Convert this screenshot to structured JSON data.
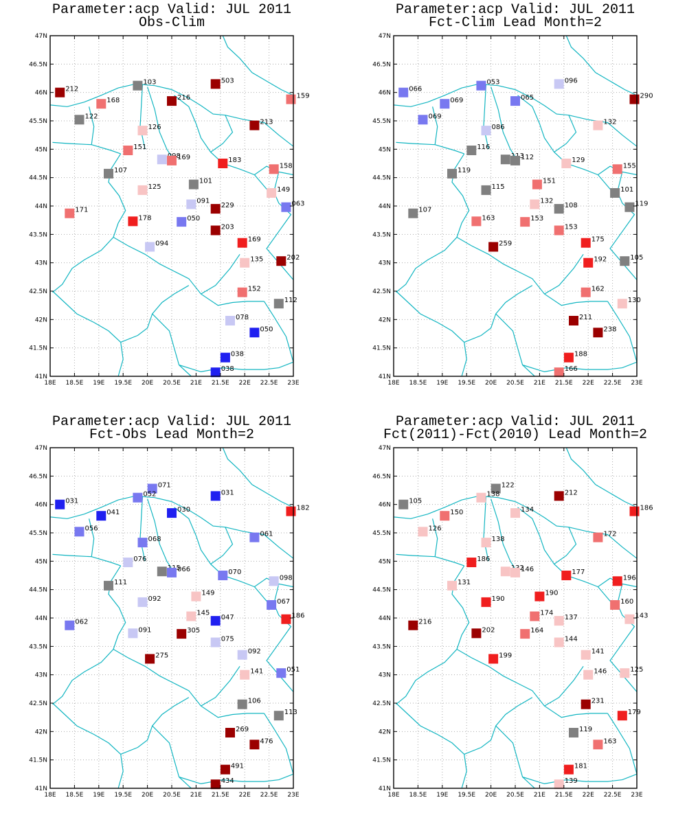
{
  "colors": {
    "coast": "#11b5c1",
    "grid": "#a9a9a9",
    "dark_red": "#9b0000",
    "red": "#f01e1e",
    "salmon": "#f07070",
    "pink": "#f8c4c4",
    "gray": "#808080",
    "lavender": "#c8c8f4",
    "light_blue": "#7878f0",
    "blue": "#2020f0"
  },
  "axes": {
    "lon_ticks": [
      "18E",
      "18.5E",
      "19E",
      "19.5E",
      "20E",
      "20.5E",
      "21E",
      "21.5E",
      "22E",
      "22.5E",
      "23E"
    ],
    "lat_ticks": [
      "41N",
      "41.5N",
      "42N",
      "42.5N",
      "43N",
      "43.5N",
      "44N",
      "44.5N",
      "45N",
      "45.5N",
      "46N",
      "46.5N",
      "47N"
    ],
    "lon_range": [
      18,
      23
    ],
    "lat_range": [
      41,
      47
    ]
  },
  "chart_data": [
    {
      "type": "scatter",
      "title_line1": "Parameter:acp Valid: JUL 2011",
      "title_line2": "Obs-Clim",
      "points": [
        {
          "lon": 18.2,
          "lat": 46.0,
          "label": "212",
          "cat": "dark_red"
        },
        {
          "lon": 19.8,
          "lat": 46.12,
          "label": "103",
          "cat": "gray"
        },
        {
          "lon": 21.4,
          "lat": 46.15,
          "label": "503",
          "cat": "dark_red"
        },
        {
          "lon": 22.95,
          "lat": 45.88,
          "label": "159",
          "cat": "salmon"
        },
        {
          "lon": 19.05,
          "lat": 45.8,
          "label": "168",
          "cat": "salmon"
        },
        {
          "lon": 20.5,
          "lat": 45.85,
          "label": "216",
          "cat": "dark_red"
        },
        {
          "lon": 18.6,
          "lat": 45.52,
          "label": "122",
          "cat": "gray"
        },
        {
          "lon": 22.2,
          "lat": 45.42,
          "label": "213",
          "cat": "dark_red"
        },
        {
          "lon": 19.9,
          "lat": 45.33,
          "label": "126",
          "cat": "pink"
        },
        {
          "lon": 19.6,
          "lat": 44.98,
          "label": "151",
          "cat": "salmon"
        },
        {
          "lon": 20.3,
          "lat": 44.82,
          "label": "098",
          "cat": "lavender"
        },
        {
          "lon": 20.5,
          "lat": 44.8,
          "label": "169",
          "cat": "salmon"
        },
        {
          "lon": 21.55,
          "lat": 44.75,
          "label": "183",
          "cat": "red"
        },
        {
          "lon": 22.6,
          "lat": 44.65,
          "label": "158",
          "cat": "salmon"
        },
        {
          "lon": 19.2,
          "lat": 44.57,
          "label": "107",
          "cat": "gray"
        },
        {
          "lon": 20.95,
          "lat": 44.38,
          "label": "101",
          "cat": "gray"
        },
        {
          "lon": 19.9,
          "lat": 44.28,
          "label": "125",
          "cat": "pink"
        },
        {
          "lon": 22.55,
          "lat": 44.23,
          "label": "149",
          "cat": "pink"
        },
        {
          "lon": 20.9,
          "lat": 44.03,
          "label": "091",
          "cat": "lavender"
        },
        {
          "lon": 21.4,
          "lat": 43.95,
          "label": "229",
          "cat": "dark_red"
        },
        {
          "lon": 22.85,
          "lat": 43.98,
          "label": "063",
          "cat": "light_blue"
        },
        {
          "lon": 18.4,
          "lat": 43.87,
          "label": "171",
          "cat": "salmon"
        },
        {
          "lon": 19.7,
          "lat": 43.73,
          "label": "178",
          "cat": "red"
        },
        {
          "lon": 20.7,
          "lat": 43.72,
          "label": "050",
          "cat": "light_blue"
        },
        {
          "lon": 21.4,
          "lat": 43.57,
          "label": "203",
          "cat": "dark_red"
        },
        {
          "lon": 20.05,
          "lat": 43.28,
          "label": "094",
          "cat": "lavender"
        },
        {
          "lon": 21.95,
          "lat": 43.35,
          "label": "169",
          "cat": "red"
        },
        {
          "lon": 22.0,
          "lat": 43.0,
          "label": "135",
          "cat": "pink"
        },
        {
          "lon": 22.75,
          "lat": 43.03,
          "label": "202",
          "cat": "dark_red"
        },
        {
          "lon": 21.95,
          "lat": 42.48,
          "label": "152",
          "cat": "salmon"
        },
        {
          "lon": 22.7,
          "lat": 42.28,
          "label": "112",
          "cat": "gray"
        },
        {
          "lon": 21.7,
          "lat": 41.98,
          "label": "078",
          "cat": "lavender"
        },
        {
          "lon": 22.2,
          "lat": 41.77,
          "label": "050",
          "cat": "blue"
        },
        {
          "lon": 21.6,
          "lat": 41.33,
          "label": "038",
          "cat": "blue"
        },
        {
          "lon": 21.4,
          "lat": 41.07,
          "label": "038",
          "cat": "blue"
        }
      ]
    },
    {
      "type": "scatter",
      "title_line1": "Parameter:acp Valid: JUL 2011",
      "title_line2": "Fct-Clim Lead Month=2",
      "points": [
        {
          "lon": 18.2,
          "lat": 46.0,
          "label": "066",
          "cat": "light_blue"
        },
        {
          "lon": 19.8,
          "lat": 46.12,
          "label": "053",
          "cat": "light_blue"
        },
        {
          "lon": 21.4,
          "lat": 46.15,
          "label": "096",
          "cat": "lavender"
        },
        {
          "lon": 22.95,
          "lat": 45.88,
          "label": "290",
          "cat": "dark_red"
        },
        {
          "lon": 19.05,
          "lat": 45.8,
          "label": "069",
          "cat": "light_blue"
        },
        {
          "lon": 20.5,
          "lat": 45.85,
          "label": "065",
          "cat": "light_blue"
        },
        {
          "lon": 18.6,
          "lat": 45.52,
          "label": "069",
          "cat": "light_blue"
        },
        {
          "lon": 22.2,
          "lat": 45.42,
          "label": "132",
          "cat": "pink"
        },
        {
          "lon": 19.9,
          "lat": 45.33,
          "label": "086",
          "cat": "lavender"
        },
        {
          "lon": 19.6,
          "lat": 44.98,
          "label": "116",
          "cat": "gray"
        },
        {
          "lon": 20.3,
          "lat": 44.82,
          "label": "113",
          "cat": "gray"
        },
        {
          "lon": 20.5,
          "lat": 44.8,
          "label": "112",
          "cat": "gray"
        },
        {
          "lon": 21.55,
          "lat": 44.75,
          "label": "129",
          "cat": "pink"
        },
        {
          "lon": 22.6,
          "lat": 44.65,
          "label": "155",
          "cat": "salmon"
        },
        {
          "lon": 19.2,
          "lat": 44.57,
          "label": "119",
          "cat": "gray"
        },
        {
          "lon": 20.95,
          "lat": 44.38,
          "label": "151",
          "cat": "salmon"
        },
        {
          "lon": 19.9,
          "lat": 44.28,
          "label": "115",
          "cat": "gray"
        },
        {
          "lon": 22.55,
          "lat": 44.23,
          "label": "101",
          "cat": "gray"
        },
        {
          "lon": 20.9,
          "lat": 44.03,
          "label": "132",
          "cat": "pink"
        },
        {
          "lon": 21.4,
          "lat": 43.95,
          "label": "108",
          "cat": "gray"
        },
        {
          "lon": 22.85,
          "lat": 43.98,
          "label": "119",
          "cat": "gray"
        },
        {
          "lon": 18.4,
          "lat": 43.87,
          "label": "107",
          "cat": "gray"
        },
        {
          "lon": 19.7,
          "lat": 43.73,
          "label": "163",
          "cat": "salmon"
        },
        {
          "lon": 20.7,
          "lat": 43.72,
          "label": "153",
          "cat": "salmon"
        },
        {
          "lon": 21.4,
          "lat": 43.57,
          "label": "153",
          "cat": "salmon"
        },
        {
          "lon": 20.05,
          "lat": 43.28,
          "label": "259",
          "cat": "dark_red"
        },
        {
          "lon": 21.95,
          "lat": 43.35,
          "label": "175",
          "cat": "red"
        },
        {
          "lon": 22.0,
          "lat": 43.0,
          "label": "192",
          "cat": "red"
        },
        {
          "lon": 22.75,
          "lat": 43.03,
          "label": "105",
          "cat": "gray"
        },
        {
          "lon": 21.95,
          "lat": 42.48,
          "label": "162",
          "cat": "salmon"
        },
        {
          "lon": 22.7,
          "lat": 42.28,
          "label": "130",
          "cat": "pink"
        },
        {
          "lon": 21.7,
          "lat": 41.98,
          "label": "211",
          "cat": "dark_red"
        },
        {
          "lon": 22.2,
          "lat": 41.77,
          "label": "238",
          "cat": "dark_red"
        },
        {
          "lon": 21.6,
          "lat": 41.33,
          "label": "188",
          "cat": "red"
        },
        {
          "lon": 21.4,
          "lat": 41.07,
          "label": "166",
          "cat": "salmon"
        }
      ]
    },
    {
      "type": "scatter",
      "title_line1": "Parameter:acp Valid: JUL 2011",
      "title_line2": "Fct-Obs Lead Month=2",
      "points": [
        {
          "lon": 18.2,
          "lat": 46.0,
          "label": "031",
          "cat": "blue"
        },
        {
          "lon": 20.1,
          "lat": 46.28,
          "label": "071",
          "cat": "light_blue"
        },
        {
          "lon": 19.8,
          "lat": 46.12,
          "label": "052",
          "cat": "light_blue"
        },
        {
          "lon": 21.4,
          "lat": 46.15,
          "label": "031",
          "cat": "blue"
        },
        {
          "lon": 22.95,
          "lat": 45.88,
          "label": "182",
          "cat": "red"
        },
        {
          "lon": 19.05,
          "lat": 45.8,
          "label": "041",
          "cat": "blue"
        },
        {
          "lon": 20.5,
          "lat": 45.85,
          "label": "030",
          "cat": "blue"
        },
        {
          "lon": 18.6,
          "lat": 45.52,
          "label": "056",
          "cat": "light_blue"
        },
        {
          "lon": 22.2,
          "lat": 45.42,
          "label": "061",
          "cat": "light_blue"
        },
        {
          "lon": 19.9,
          "lat": 45.33,
          "label": "068",
          "cat": "light_blue"
        },
        {
          "lon": 19.6,
          "lat": 44.98,
          "label": "076",
          "cat": "lavender"
        },
        {
          "lon": 20.3,
          "lat": 44.82,
          "label": "115",
          "cat": "gray"
        },
        {
          "lon": 20.5,
          "lat": 44.8,
          "label": "066",
          "cat": "light_blue"
        },
        {
          "lon": 21.55,
          "lat": 44.75,
          "label": "070",
          "cat": "light_blue"
        },
        {
          "lon": 22.6,
          "lat": 44.65,
          "label": "098",
          "cat": "lavender"
        },
        {
          "lon": 19.2,
          "lat": 44.57,
          "label": "111",
          "cat": "gray"
        },
        {
          "lon": 21.0,
          "lat": 44.38,
          "label": "149",
          "cat": "pink"
        },
        {
          "lon": 19.9,
          "lat": 44.28,
          "label": "092",
          "cat": "lavender"
        },
        {
          "lon": 22.55,
          "lat": 44.23,
          "label": "067",
          "cat": "light_blue"
        },
        {
          "lon": 20.9,
          "lat": 44.03,
          "label": "145",
          "cat": "pink"
        },
        {
          "lon": 21.4,
          "lat": 43.95,
          "label": "047",
          "cat": "blue"
        },
        {
          "lon": 22.85,
          "lat": 43.98,
          "label": "186",
          "cat": "red"
        },
        {
          "lon": 18.4,
          "lat": 43.87,
          "label": "062",
          "cat": "light_blue"
        },
        {
          "lon": 19.7,
          "lat": 43.73,
          "label": "091",
          "cat": "lavender"
        },
        {
          "lon": 20.7,
          "lat": 43.72,
          "label": "305",
          "cat": "dark_red"
        },
        {
          "lon": 21.4,
          "lat": 43.57,
          "label": "075",
          "cat": "lavender"
        },
        {
          "lon": 20.05,
          "lat": 43.28,
          "label": "275",
          "cat": "dark_red"
        },
        {
          "lon": 21.95,
          "lat": 43.35,
          "label": "092",
          "cat": "lavender"
        },
        {
          "lon": 22.0,
          "lat": 43.0,
          "label": "141",
          "cat": "pink"
        },
        {
          "lon": 22.75,
          "lat": 43.03,
          "label": "051",
          "cat": "light_blue"
        },
        {
          "lon": 21.95,
          "lat": 42.48,
          "label": "106",
          "cat": "gray"
        },
        {
          "lon": 22.7,
          "lat": 42.28,
          "label": "113",
          "cat": "gray"
        },
        {
          "lon": 21.7,
          "lat": 41.98,
          "label": "269",
          "cat": "dark_red"
        },
        {
          "lon": 22.2,
          "lat": 41.77,
          "label": "476",
          "cat": "dark_red"
        },
        {
          "lon": 21.6,
          "lat": 41.33,
          "label": "491",
          "cat": "dark_red"
        },
        {
          "lon": 21.4,
          "lat": 41.07,
          "label": "434",
          "cat": "dark_red"
        }
      ]
    },
    {
      "type": "scatter",
      "title_line1": "Parameter:acp Valid: JUL 2011",
      "title_line2": "Fct(2011)-Fct(2010) Lead Month=2",
      "points": [
        {
          "lon": 18.2,
          "lat": 46.0,
          "label": "105",
          "cat": "gray"
        },
        {
          "lon": 20.1,
          "lat": 46.28,
          "label": "122",
          "cat": "gray"
        },
        {
          "lon": 19.8,
          "lat": 46.12,
          "label": "138",
          "cat": "pink"
        },
        {
          "lon": 21.4,
          "lat": 46.15,
          "label": "212",
          "cat": "dark_red"
        },
        {
          "lon": 22.95,
          "lat": 45.88,
          "label": "186",
          "cat": "red"
        },
        {
          "lon": 19.05,
          "lat": 45.8,
          "label": "150",
          "cat": "salmon"
        },
        {
          "lon": 20.5,
          "lat": 45.85,
          "label": "134",
          "cat": "pink"
        },
        {
          "lon": 18.6,
          "lat": 45.52,
          "label": "126",
          "cat": "pink"
        },
        {
          "lon": 22.2,
          "lat": 45.42,
          "label": "172",
          "cat": "salmon"
        },
        {
          "lon": 19.9,
          "lat": 45.33,
          "label": "138",
          "cat": "pink"
        },
        {
          "lon": 19.6,
          "lat": 44.98,
          "label": "186",
          "cat": "red"
        },
        {
          "lon": 20.3,
          "lat": 44.82,
          "label": "132",
          "cat": "pink"
        },
        {
          "lon": 20.5,
          "lat": 44.8,
          "label": "146",
          "cat": "pink"
        },
        {
          "lon": 21.55,
          "lat": 44.75,
          "label": "177",
          "cat": "red"
        },
        {
          "lon": 22.6,
          "lat": 44.65,
          "label": "196",
          "cat": "red"
        },
        {
          "lon": 19.2,
          "lat": 44.57,
          "label": "131",
          "cat": "pink"
        },
        {
          "lon": 21.0,
          "lat": 44.38,
          "label": "190",
          "cat": "red"
        },
        {
          "lon": 19.9,
          "lat": 44.28,
          "label": "190",
          "cat": "red"
        },
        {
          "lon": 22.55,
          "lat": 44.23,
          "label": "160",
          "cat": "salmon"
        },
        {
          "lon": 20.9,
          "lat": 44.03,
          "label": "174",
          "cat": "salmon"
        },
        {
          "lon": 21.4,
          "lat": 43.95,
          "label": "137",
          "cat": "pink"
        },
        {
          "lon": 22.85,
          "lat": 43.98,
          "label": "143",
          "cat": "pink"
        },
        {
          "lon": 18.4,
          "lat": 43.87,
          "label": "216",
          "cat": "dark_red"
        },
        {
          "lon": 19.7,
          "lat": 43.73,
          "label": "202",
          "cat": "dark_red"
        },
        {
          "lon": 20.7,
          "lat": 43.72,
          "label": "164",
          "cat": "salmon"
        },
        {
          "lon": 21.4,
          "lat": 43.57,
          "label": "144",
          "cat": "pink"
        },
        {
          "lon": 20.05,
          "lat": 43.28,
          "label": "199",
          "cat": "red"
        },
        {
          "lon": 21.95,
          "lat": 43.35,
          "label": "141",
          "cat": "pink"
        },
        {
          "lon": 22.0,
          "lat": 43.0,
          "label": "146",
          "cat": "pink"
        },
        {
          "lon": 22.75,
          "lat": 43.03,
          "label": "125",
          "cat": "pink"
        },
        {
          "lon": 21.95,
          "lat": 42.48,
          "label": "231",
          "cat": "dark_red"
        },
        {
          "lon": 22.7,
          "lat": 42.28,
          "label": "179",
          "cat": "red"
        },
        {
          "lon": 21.7,
          "lat": 41.98,
          "label": "119",
          "cat": "gray"
        },
        {
          "lon": 22.2,
          "lat": 41.77,
          "label": "163",
          "cat": "salmon"
        },
        {
          "lon": 21.6,
          "lat": 41.33,
          "label": "181",
          "cat": "red"
        },
        {
          "lon": 21.4,
          "lat": 41.07,
          "label": "139",
          "cat": "pink"
        }
      ]
    }
  ]
}
